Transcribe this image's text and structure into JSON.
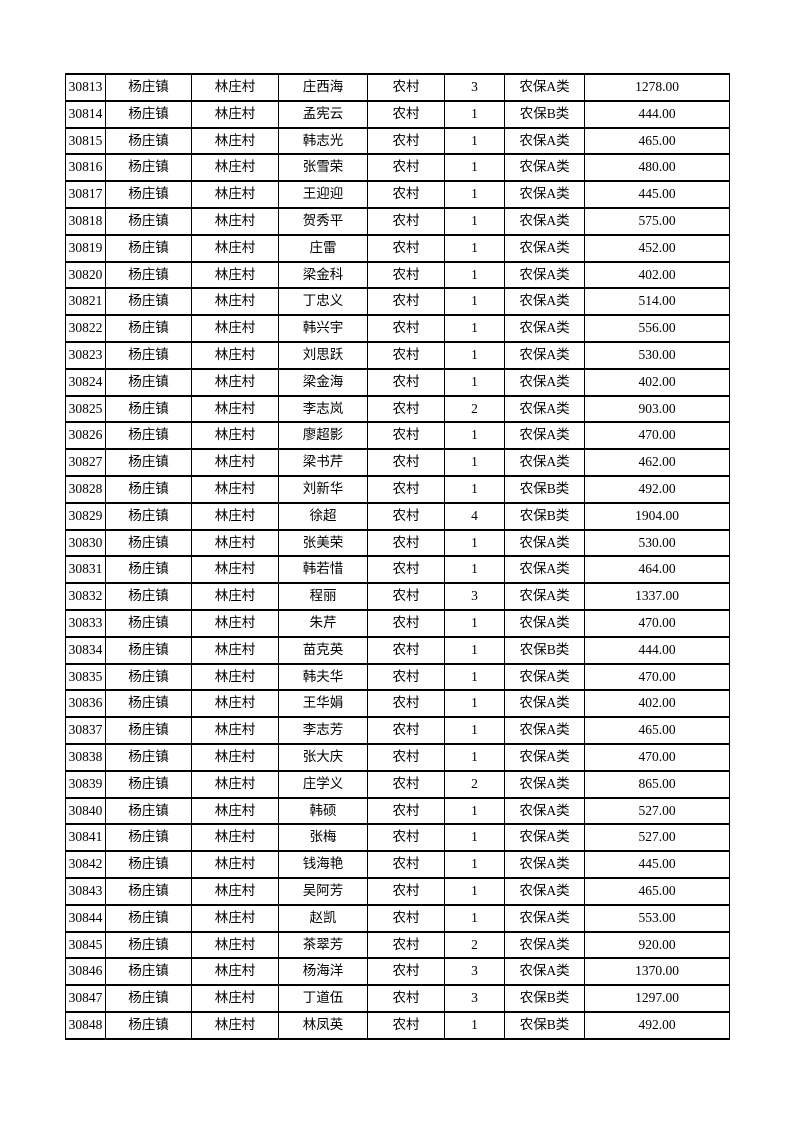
{
  "table": {
    "rows": [
      [
        "30813",
        "杨庄镇",
        "林庄村",
        "庄西海",
        "农村",
        "3",
        "农保A类",
        "1278.00"
      ],
      [
        "30814",
        "杨庄镇",
        "林庄村",
        "孟宪云",
        "农村",
        "1",
        "农保B类",
        "444.00"
      ],
      [
        "30815",
        "杨庄镇",
        "林庄村",
        "韩志光",
        "农村",
        "1",
        "农保A类",
        "465.00"
      ],
      [
        "30816",
        "杨庄镇",
        "林庄村",
        "张雪荣",
        "农村",
        "1",
        "农保A类",
        "480.00"
      ],
      [
        "30817",
        "杨庄镇",
        "林庄村",
        "王迎迎",
        "农村",
        "1",
        "农保A类",
        "445.00"
      ],
      [
        "30818",
        "杨庄镇",
        "林庄村",
        "贺秀平",
        "农村",
        "1",
        "农保A类",
        "575.00"
      ],
      [
        "30819",
        "杨庄镇",
        "林庄村",
        "庄雷",
        "农村",
        "1",
        "农保A类",
        "452.00"
      ],
      [
        "30820",
        "杨庄镇",
        "林庄村",
        "梁金科",
        "农村",
        "1",
        "农保A类",
        "402.00"
      ],
      [
        "30821",
        "杨庄镇",
        "林庄村",
        "丁忠义",
        "农村",
        "1",
        "农保A类",
        "514.00"
      ],
      [
        "30822",
        "杨庄镇",
        "林庄村",
        "韩兴宇",
        "农村",
        "1",
        "农保A类",
        "556.00"
      ],
      [
        "30823",
        "杨庄镇",
        "林庄村",
        "刘思跃",
        "农村",
        "1",
        "农保A类",
        "530.00"
      ],
      [
        "30824",
        "杨庄镇",
        "林庄村",
        "梁金海",
        "农村",
        "1",
        "农保A类",
        "402.00"
      ],
      [
        "30825",
        "杨庄镇",
        "林庄村",
        "李志岚",
        "农村",
        "2",
        "农保A类",
        "903.00"
      ],
      [
        "30826",
        "杨庄镇",
        "林庄村",
        "廖超影",
        "农村",
        "1",
        "农保A类",
        "470.00"
      ],
      [
        "30827",
        "杨庄镇",
        "林庄村",
        "梁书芹",
        "农村",
        "1",
        "农保A类",
        "462.00"
      ],
      [
        "30828",
        "杨庄镇",
        "林庄村",
        "刘新华",
        "农村",
        "1",
        "农保B类",
        "492.00"
      ],
      [
        "30829",
        "杨庄镇",
        "林庄村",
        "徐超",
        "农村",
        "4",
        "农保B类",
        "1904.00"
      ],
      [
        "30830",
        "杨庄镇",
        "林庄村",
        "张美荣",
        "农村",
        "1",
        "农保A类",
        "530.00"
      ],
      [
        "30831",
        "杨庄镇",
        "林庄村",
        "韩若惜",
        "农村",
        "1",
        "农保A类",
        "464.00"
      ],
      [
        "30832",
        "杨庄镇",
        "林庄村",
        "程丽",
        "农村",
        "3",
        "农保A类",
        "1337.00"
      ],
      [
        "30833",
        "杨庄镇",
        "林庄村",
        "朱芹",
        "农村",
        "1",
        "农保A类",
        "470.00"
      ],
      [
        "30834",
        "杨庄镇",
        "林庄村",
        "苗克英",
        "农村",
        "1",
        "农保B类",
        "444.00"
      ],
      [
        "30835",
        "杨庄镇",
        "林庄村",
        "韩夫华",
        "农村",
        "1",
        "农保A类",
        "470.00"
      ],
      [
        "30836",
        "杨庄镇",
        "林庄村",
        "王华娟",
        "农村",
        "1",
        "农保A类",
        "402.00"
      ],
      [
        "30837",
        "杨庄镇",
        "林庄村",
        "李志芳",
        "农村",
        "1",
        "农保A类",
        "465.00"
      ],
      [
        "30838",
        "杨庄镇",
        "林庄村",
        "张大庆",
        "农村",
        "1",
        "农保A类",
        "470.00"
      ],
      [
        "30839",
        "杨庄镇",
        "林庄村",
        "庄学义",
        "农村",
        "2",
        "农保A类",
        "865.00"
      ],
      [
        "30840",
        "杨庄镇",
        "林庄村",
        "韩硕",
        "农村",
        "1",
        "农保A类",
        "527.00"
      ],
      [
        "30841",
        "杨庄镇",
        "林庄村",
        "张梅",
        "农村",
        "1",
        "农保A类",
        "527.00"
      ],
      [
        "30842",
        "杨庄镇",
        "林庄村",
        "钱海艳",
        "农村",
        "1",
        "农保A类",
        "445.00"
      ],
      [
        "30843",
        "杨庄镇",
        "林庄村",
        "吴阿芳",
        "农村",
        "1",
        "农保A类",
        "465.00"
      ],
      [
        "30844",
        "杨庄镇",
        "林庄村",
        "赵凯",
        "农村",
        "1",
        "农保A类",
        "553.00"
      ],
      [
        "30845",
        "杨庄镇",
        "林庄村",
        "茶翠芳",
        "农村",
        "2",
        "农保A类",
        "920.00"
      ],
      [
        "30846",
        "杨庄镇",
        "林庄村",
        "杨海洋",
        "农村",
        "3",
        "农保A类",
        "1370.00"
      ],
      [
        "30847",
        "杨庄镇",
        "林庄村",
        "丁道伍",
        "农村",
        "3",
        "农保B类",
        "1297.00"
      ],
      [
        "30848",
        "杨庄镇",
        "林庄村",
        "林凤英",
        "农村",
        "1",
        "农保B类",
        "492.00"
      ]
    ]
  }
}
